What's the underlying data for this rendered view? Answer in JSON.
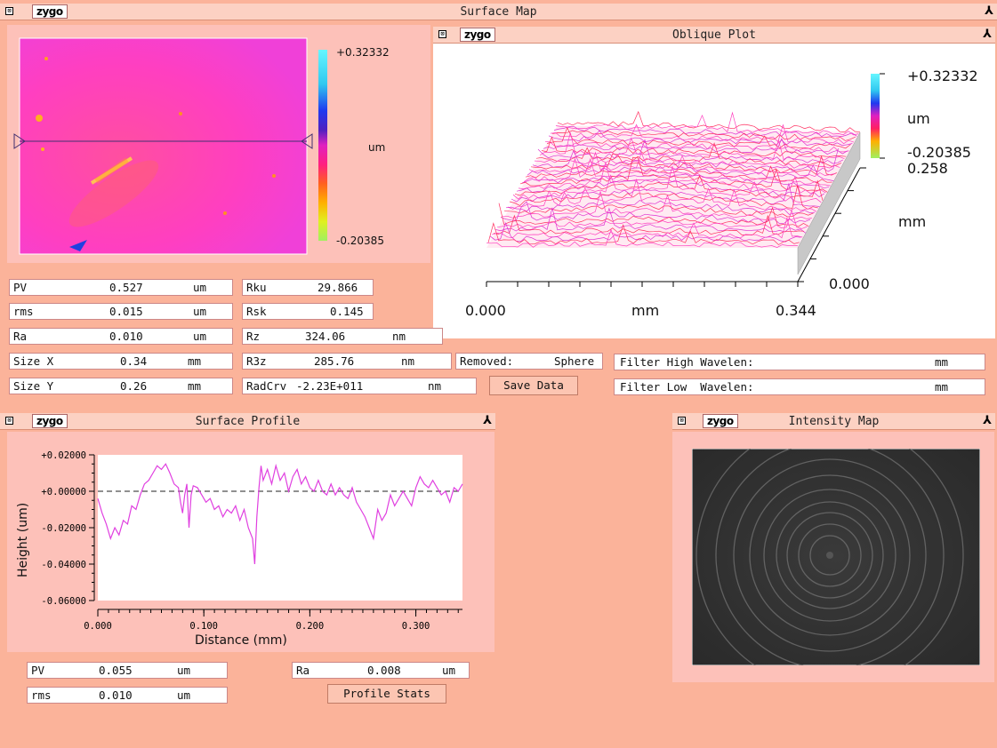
{
  "logo": "zygo",
  "surface_map": {
    "title": "Surface Map",
    "scale_max": "+0.32332",
    "scale_unit": "um",
    "scale_min": "-0.20385",
    "profile_line": {
      "from_pct": [
        0.03,
        0.49
      ],
      "to_pct": [
        0.97,
        0.49
      ]
    }
  },
  "oblique_plot": {
    "title": "Oblique Plot",
    "scale_max": "+0.32332",
    "scale_unit": "um",
    "scale_min": "-0.20385",
    "y_axis_max": "0.258",
    "y_axis_unit": "mm",
    "y_axis_min": "0.000",
    "x_axis_min": "0.000",
    "x_axis_unit": "mm",
    "x_axis_max": "0.344"
  },
  "stats": [
    {
      "label": "PV",
      "value": "0.527",
      "unit": "um"
    },
    {
      "label": "rms",
      "value": "0.015",
      "unit": "um"
    },
    {
      "label": "Ra",
      "value": "0.010",
      "unit": "um"
    },
    {
      "label": "Size X",
      "value": "0.34",
      "unit": "mm"
    },
    {
      "label": "Size Y",
      "value": "0.26",
      "unit": "mm"
    }
  ],
  "stats2": [
    {
      "label": "Rku",
      "value": "29.866",
      "unit": ""
    },
    {
      "label": "Rsk",
      "value": "0.145",
      "unit": ""
    },
    {
      "label": "Rz",
      "value": "324.06",
      "unit": "nm"
    },
    {
      "label": "R3z",
      "value": "285.76",
      "unit": "nm"
    },
    {
      "label": "RadCrv",
      "value": "-2.23E+011",
      "unit": "nm"
    }
  ],
  "removed": {
    "label": "Removed:",
    "value": "Sphere"
  },
  "save_data": "Save Data",
  "filter_high": {
    "label": "Filter High Wavelen:",
    "unit": "mm"
  },
  "filter_low": {
    "label": "Filter Low  Wavelen:",
    "unit": "mm"
  },
  "surface_profile": {
    "title": "Surface Profile",
    "ylabel": "Height (um)",
    "xlabel": "Distance (mm)",
    "yticks": [
      "+0.02000",
      "+0.00000",
      "-0.02000",
      "-0.04000",
      "-0.06000"
    ],
    "xticks": [
      "0.000",
      "0.100",
      "0.200",
      "0.300"
    ]
  },
  "chart_data": {
    "type": "line",
    "xlabel": "Distance (mm)",
    "ylabel": "Height (um)",
    "xlim": [
      0,
      0.344
    ],
    "ylim": [
      -0.06,
      0.02
    ],
    "reference_line": 0.0,
    "x": [
      0.0,
      0.004,
      0.008,
      0.012,
      0.016,
      0.02,
      0.024,
      0.028,
      0.032,
      0.036,
      0.04,
      0.044,
      0.048,
      0.052,
      0.056,
      0.06,
      0.064,
      0.068,
      0.072,
      0.076,
      0.078,
      0.08,
      0.082,
      0.084,
      0.086,
      0.088,
      0.09,
      0.094,
      0.098,
      0.102,
      0.106,
      0.11,
      0.114,
      0.118,
      0.122,
      0.126,
      0.13,
      0.134,
      0.138,
      0.142,
      0.146,
      0.148,
      0.15,
      0.152,
      0.154,
      0.156,
      0.16,
      0.164,
      0.168,
      0.172,
      0.176,
      0.18,
      0.184,
      0.188,
      0.192,
      0.196,
      0.2,
      0.204,
      0.208,
      0.212,
      0.216,
      0.22,
      0.224,
      0.228,
      0.232,
      0.236,
      0.24,
      0.244,
      0.248,
      0.252,
      0.256,
      0.26,
      0.262,
      0.264,
      0.268,
      0.272,
      0.276,
      0.28,
      0.284,
      0.288,
      0.292,
      0.296,
      0.3,
      0.304,
      0.308,
      0.312,
      0.316,
      0.32,
      0.324,
      0.328,
      0.332,
      0.336,
      0.34,
      0.344
    ],
    "y": [
      -0.004,
      -0.012,
      -0.018,
      -0.026,
      -0.02,
      -0.024,
      -0.016,
      -0.018,
      -0.008,
      -0.01,
      -0.002,
      0.004,
      0.006,
      0.01,
      0.014,
      0.012,
      0.015,
      0.01,
      0.004,
      0.002,
      -0.006,
      -0.012,
      -0.002,
      0.004,
      -0.02,
      -0.002,
      0.003,
      0.002,
      -0.002,
      -0.006,
      -0.004,
      -0.01,
      -0.008,
      -0.014,
      -0.01,
      -0.012,
      -0.008,
      -0.016,
      -0.01,
      -0.02,
      -0.026,
      -0.04,
      -0.014,
      0.002,
      0.014,
      0.006,
      0.012,
      0.004,
      0.014,
      0.006,
      0.01,
      0.0,
      0.008,
      0.012,
      0.004,
      0.008,
      0.002,
      0.0,
      0.006,
      0.0,
      -0.002,
      0.004,
      -0.002,
      0.002,
      -0.002,
      -0.004,
      0.002,
      -0.006,
      -0.01,
      -0.014,
      -0.02,
      -0.026,
      -0.018,
      -0.01,
      -0.016,
      -0.012,
      -0.002,
      -0.008,
      -0.004,
      0.0,
      -0.004,
      -0.008,
      0.002,
      0.008,
      0.004,
      0.002,
      0.006,
      0.002,
      -0.002,
      0.0,
      -0.006,
      0.002,
      0.0,
      0.004
    ]
  },
  "intensity_map": {
    "title": "Intensity Map"
  },
  "profile_stats": [
    {
      "label": "PV",
      "value": "0.055",
      "unit": "um"
    },
    {
      "label": "rms",
      "value": "0.010",
      "unit": "um"
    },
    {
      "label": "Ra",
      "value": "0.008",
      "unit": "um"
    }
  ],
  "profile_stats_btn": "Profile Stats",
  "icons": {
    "close": "close-box-icon",
    "pin": "pin-icon"
  }
}
